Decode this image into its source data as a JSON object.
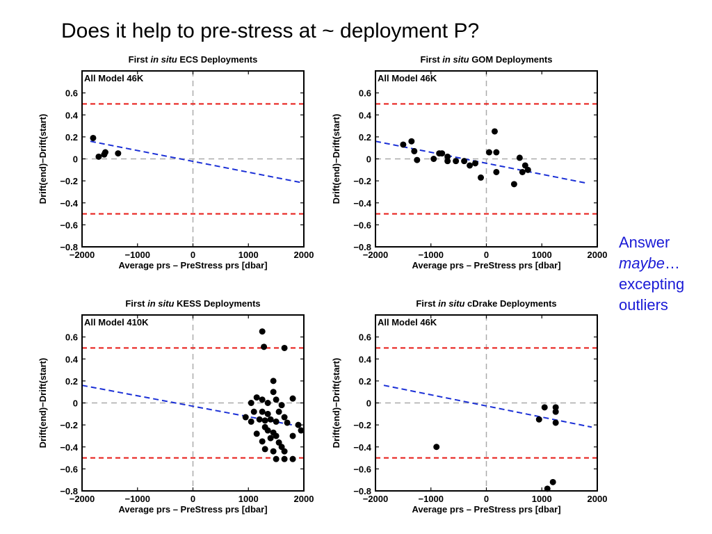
{
  "slide": {
    "title": "Does it help to pre-stress at ~ deployment P?",
    "answer_line1": "Answer",
    "answer_line2_italic": "maybe",
    "answer_line2_rest": "…",
    "answer_line3": "excepting",
    "answer_line4": "outliers"
  },
  "chart_data": [
    {
      "type": "scatter",
      "title_prefix": "First ",
      "title_italic": "in situ",
      "title_suffix": " ECS Deployments",
      "annotation": "All Model 46K",
      "xlabel": "Average prs – PreStress prs [dbar]",
      "ylabel": "Drift(end)−Drift(start)",
      "xlim": [
        -2000,
        2000
      ],
      "ylim": [
        -0.8,
        0.8
      ],
      "xticks": [
        -2000,
        -1000,
        0,
        1000,
        2000
      ],
      "xtick_labels": [
        "−2000",
        "−1000",
        "0",
        "1000",
        "2000"
      ],
      "yticks": [
        0.6,
        0.4,
        0.2,
        0,
        -0.2,
        -0.4,
        -0.6,
        -0.8
      ],
      "ytick_labels": [
        "0.6",
        "0.4",
        "0.2",
        "0",
        "−0.2",
        "−0.4",
        "−0.6",
        "−0.8"
      ],
      "threshold_lines": [
        0.5,
        -0.5
      ],
      "trend_line": {
        "x": [
          -1850,
          2000
        ],
        "y": [
          0.16,
          -0.22
        ]
      },
      "points": [
        [
          -1800,
          0.19
        ],
        [
          -1700,
          0.02
        ],
        [
          -1600,
          0.04
        ],
        [
          -1580,
          0.06
        ],
        [
          -1350,
          0.05
        ]
      ]
    },
    {
      "type": "scatter",
      "title_prefix": "First ",
      "title_italic": "in situ",
      "title_suffix": " GOM Deployments",
      "annotation": "All Model 46K",
      "xlabel": "Average prs – PreStress prs [dbar]",
      "ylabel": "Drift(end)−Drift(start)",
      "xlim": [
        -2000,
        2000
      ],
      "ylim": [
        -0.8,
        0.8
      ],
      "xticks": [
        -2000,
        -1000,
        0,
        1000,
        2000
      ],
      "xtick_labels": [
        "−2000",
        "−1000",
        "0",
        "1000",
        "2000"
      ],
      "yticks": [
        0.6,
        0.4,
        0.2,
        0,
        -0.2,
        -0.4,
        -0.6,
        -0.8
      ],
      "ytick_labels": [
        "0.6",
        "0.4",
        "0.2",
        "0",
        "−0.2",
        "−0.4",
        "−0.6",
        "−0.8"
      ],
      "threshold_lines": [
        0.5,
        -0.5
      ],
      "trend_line": {
        "x": [
          -2000,
          1800
        ],
        "y": [
          0.16,
          -0.22
        ]
      },
      "points": [
        [
          -1500,
          0.13
        ],
        [
          -1350,
          0.16
        ],
        [
          -1300,
          0.07
        ],
        [
          -1250,
          -0.01
        ],
        [
          -950,
          0.0
        ],
        [
          -850,
          0.05
        ],
        [
          -800,
          0.05
        ],
        [
          -700,
          0.02
        ],
        [
          -700,
          -0.02
        ],
        [
          -550,
          -0.02
        ],
        [
          -400,
          -0.02
        ],
        [
          -300,
          -0.06
        ],
        [
          -200,
          -0.04
        ],
        [
          -100,
          -0.17
        ],
        [
          50,
          0.06
        ],
        [
          150,
          0.25
        ],
        [
          180,
          0.06
        ],
        [
          180,
          -0.12
        ],
        [
          500,
          -0.23
        ],
        [
          600,
          0.01
        ],
        [
          650,
          -0.12
        ],
        [
          700,
          -0.06
        ],
        [
          750,
          -0.1
        ]
      ]
    },
    {
      "type": "scatter",
      "title_prefix": "First ",
      "title_italic": "in situ",
      "title_suffix": " KESS Deployments",
      "annotation": "All Model 410K",
      "xlabel": "Average prs – PreStress prs [dbar]",
      "ylabel": "Drift(end)−Drift(start)",
      "xlim": [
        -2000,
        2000
      ],
      "ylim": [
        -0.8,
        0.8
      ],
      "xticks": [
        -2000,
        -1000,
        0,
        1000,
        2000
      ],
      "xtick_labels": [
        "−2000",
        "−1000",
        "0",
        "1000",
        "2000"
      ],
      "yticks": [
        0.6,
        0.4,
        0.2,
        0,
        -0.2,
        -0.4,
        -0.6,
        -0.8
      ],
      "ytick_labels": [
        "0.6",
        "0.4",
        "0.2",
        "0",
        "−0.2",
        "−0.4",
        "−0.6",
        "−0.8"
      ],
      "threshold_lines": [
        0.5,
        -0.5
      ],
      "trend_line": {
        "x": [
          -2000,
          2000
        ],
        "y": [
          0.16,
          -0.22
        ]
      },
      "points": [
        [
          1250,
          0.65
        ],
        [
          1280,
          0.51
        ],
        [
          1650,
          0.5
        ],
        [
          1450,
          0.2
        ],
        [
          1150,
          0.05
        ],
        [
          1250,
          0.03
        ],
        [
          1350,
          0.0
        ],
        [
          1050,
          0.0
        ],
        [
          1800,
          0.04
        ],
        [
          1500,
          0.03
        ],
        [
          1450,
          0.1
        ],
        [
          1600,
          -0.02
        ],
        [
          1100,
          -0.08
        ],
        [
          1250,
          -0.08
        ],
        [
          1350,
          -0.1
        ],
        [
          1550,
          -0.08
        ],
        [
          950,
          -0.13
        ],
        [
          1050,
          -0.17
        ],
        [
          1200,
          -0.15
        ],
        [
          1300,
          -0.16
        ],
        [
          1400,
          -0.15
        ],
        [
          1500,
          -0.17
        ],
        [
          1650,
          -0.13
        ],
        [
          1700,
          -0.18
        ],
        [
          1900,
          -0.2
        ],
        [
          1950,
          -0.25
        ],
        [
          1150,
          -0.28
        ],
        [
          1300,
          -0.22
        ],
        [
          1350,
          -0.25
        ],
        [
          1450,
          -0.27
        ],
        [
          1500,
          -0.3
        ],
        [
          1800,
          -0.3
        ],
        [
          1250,
          -0.35
        ],
        [
          1400,
          -0.32
        ],
        [
          1550,
          -0.36
        ],
        [
          1600,
          -0.4
        ],
        [
          1300,
          -0.42
        ],
        [
          1450,
          -0.44
        ],
        [
          1650,
          -0.44
        ],
        [
          1500,
          -0.51
        ],
        [
          1650,
          -0.51
        ],
        [
          1800,
          -0.51
        ]
      ]
    },
    {
      "type": "scatter",
      "title_prefix": "First ",
      "title_italic": "in situ",
      "title_suffix": " cDrake Deployments",
      "annotation": "All Model 46K",
      "xlabel": "Average prs – PreStress prs [dbar]",
      "ylabel": "Drift(end)−Drift(start)",
      "xlim": [
        -2000,
        2000
      ],
      "ylim": [
        -0.8,
        0.8
      ],
      "xticks": [
        -2000,
        -1000,
        0,
        1000,
        2000
      ],
      "xtick_labels": [
        "−2000",
        "−1000",
        "0",
        "1000",
        "2000"
      ],
      "yticks": [
        0.6,
        0.4,
        0.2,
        0,
        -0.2,
        -0.4,
        -0.6,
        -0.8
      ],
      "ytick_labels": [
        "0.6",
        "0.4",
        "0.2",
        "0",
        "−0.2",
        "−0.4",
        "−0.6",
        "−0.8"
      ],
      "threshold_lines": [
        0.5,
        -0.5
      ],
      "trend_line": {
        "x": [
          -1850,
          1900
        ],
        "y": [
          0.16,
          -0.22
        ]
      },
      "points": [
        [
          -900,
          -0.4
        ],
        [
          950,
          -0.15
        ],
        [
          1050,
          -0.04
        ],
        [
          1250,
          -0.04
        ],
        [
          1250,
          -0.08
        ],
        [
          1250,
          -0.18
        ],
        [
          1200,
          -0.72
        ],
        [
          1100,
          -0.78
        ]
      ]
    }
  ]
}
